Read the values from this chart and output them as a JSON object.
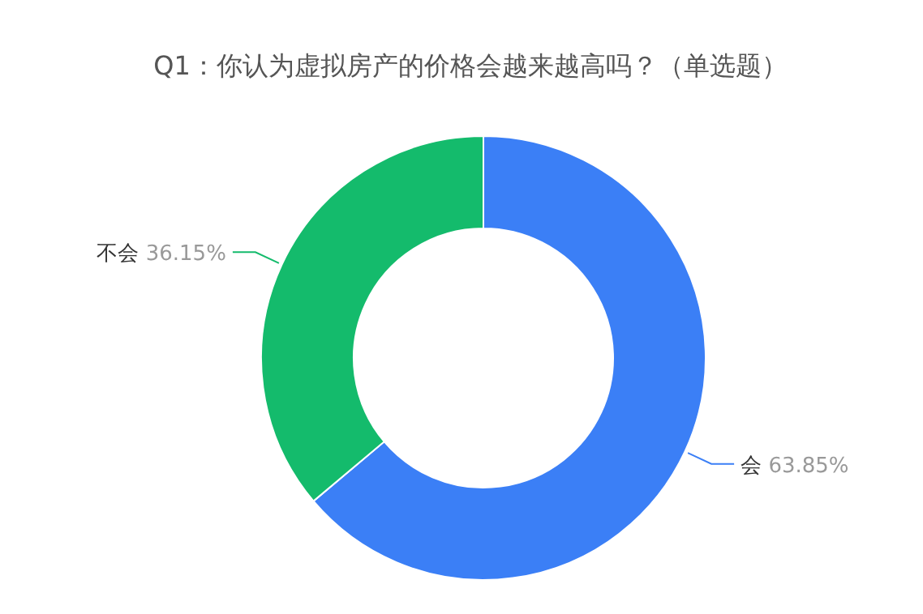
{
  "chart_data": {
    "type": "donut",
    "title": "Q1：你认为虚拟房产的价格会越来越高吗？（单选题）",
    "categories": [
      "会",
      "不会"
    ],
    "values": [
      63.85,
      36.15
    ],
    "colors": [
      "#3b7ff6",
      "#14bb6c"
    ],
    "value_labels": [
      "63.85%",
      "36.15%"
    ]
  }
}
